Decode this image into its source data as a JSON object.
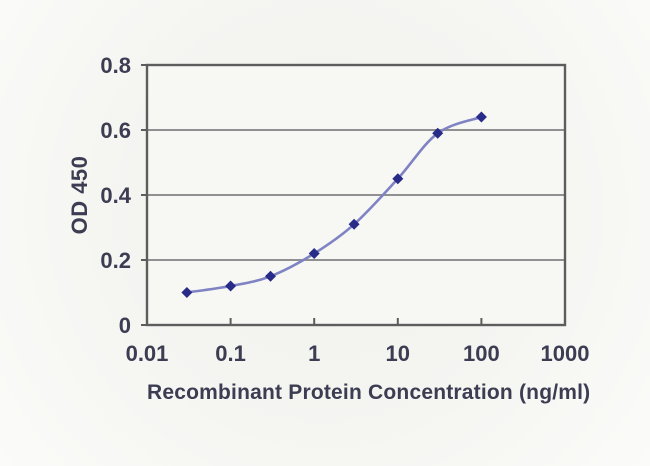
{
  "chart_data": {
    "type": "line",
    "title": "",
    "xlabel": "Recombinant Protein Concentration (ng/ml)",
    "ylabel": "OD 450",
    "x_scale": "log",
    "xlim": [
      0.01,
      1000
    ],
    "ylim": [
      0,
      0.8
    ],
    "x_ticks": [
      0.01,
      0.1,
      1,
      10,
      100,
      1000
    ],
    "x_tick_labels": [
      "0.01",
      "0.1",
      "1",
      "10",
      "100",
      "1000"
    ],
    "y_ticks": [
      0,
      0.2,
      0.4,
      0.6,
      0.8
    ],
    "y_tick_labels": [
      "0",
      "0.2",
      "0.4",
      "0.6",
      "0.8"
    ],
    "grid": "horizontal-only",
    "legend": "none",
    "series": [
      {
        "name": "OD 450",
        "marker": "diamond",
        "smooth": true,
        "x": [
          0.03,
          0.1,
          0.3,
          1,
          3,
          10,
          30,
          100
        ],
        "y": [
          0.1,
          0.12,
          0.15,
          0.22,
          0.31,
          0.45,
          0.59,
          0.64
        ]
      }
    ],
    "colors": {
      "line": "#7f83c3",
      "marker": "#282c88",
      "grid": "#909090",
      "frame": "#5d5d5d",
      "text": "#3c3c52",
      "background": "#f3f3f0",
      "plot_background": "#f7f7f4"
    }
  }
}
